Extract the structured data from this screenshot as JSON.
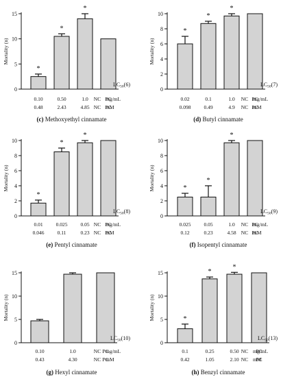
{
  "figure": {
    "bar_fill": "#d3d3d3",
    "bar_stroke": "#111111",
    "line_color": "#111111"
  },
  "chart_data": [
    {
      "type": "bar",
      "panel": "c",
      "caption_letter": "(c)",
      "caption_name": "Methoxyethyl cinnamate",
      "ylabel": "Mortality (n)",
      "ylim": [
        0,
        15
      ],
      "yticks": [
        "0",
        "5",
        "10",
        "15"
      ],
      "lc_label": "LC50(6)",
      "row1": [
        "0.10",
        "0.50",
        "1.0",
        "PC",
        "NC"
      ],
      "row1_unit": "mg/mL",
      "row2": [
        "0.48",
        "2.43",
        "4.85",
        "PC",
        "NC"
      ],
      "row2_unit": "mM",
      "values": [
        2.5,
        10.5,
        14.0,
        10.0,
        0
      ],
      "errors": [
        0.5,
        0.5,
        1.0,
        0,
        0
      ],
      "significant": [
        true,
        true,
        true,
        false,
        false
      ]
    },
    {
      "type": "bar",
      "panel": "d",
      "caption_letter": "(d)",
      "caption_name": "Butyl cinnamate",
      "ylabel": "Mortality (n)",
      "ylim": [
        0,
        10
      ],
      "yticks": [
        "0",
        "2",
        "4",
        "6",
        "8",
        "10"
      ],
      "lc_label": "LC50(7)",
      "row1": [
        "0.02",
        "0.1",
        "1.0",
        "PC",
        "NC"
      ],
      "row1_unit": "mg/mL",
      "row2": [
        "0.098",
        "0.49",
        "4.9",
        "PC",
        "NC"
      ],
      "row2_unit": "mM",
      "values": [
        6.0,
        8.7,
        9.7,
        10.0,
        0
      ],
      "errors": [
        1.0,
        0.3,
        0.3,
        0,
        0
      ],
      "significant": [
        true,
        true,
        true,
        false,
        false
      ]
    },
    {
      "type": "bar",
      "panel": "e",
      "caption_letter": "(e)",
      "caption_name": "Pentyl cinnamate",
      "ylabel": "Mortality (n)",
      "ylim": [
        0,
        10
      ],
      "yticks": [
        "0",
        "2",
        "4",
        "6",
        "8",
        "10"
      ],
      "lc_label": "LC50(8)",
      "row1": [
        "0.01",
        "0.025",
        "0.05",
        "PC",
        "NC"
      ],
      "row1_unit": "mg/mL",
      "row2": [
        "0.046",
        "0.11",
        "0.23",
        "PC",
        "NC"
      ],
      "row2_unit": "mM",
      "values": [
        1.7,
        8.5,
        9.7,
        10.0,
        0
      ],
      "errors": [
        0.4,
        0.5,
        0.3,
        0,
        0
      ],
      "significant": [
        true,
        true,
        true,
        false,
        false
      ]
    },
    {
      "type": "bar",
      "panel": "f",
      "caption_letter": "(f)",
      "caption_name": "Isopentyl cinnamate",
      "ylabel": "Mortality (n)",
      "ylim": [
        0,
        10
      ],
      "yticks": [
        "0",
        "2",
        "4",
        "6",
        "8",
        "10"
      ],
      "lc_label": "LC50(9)",
      "row1": [
        "0.025",
        "0.05",
        "1.0",
        "PC",
        "NC"
      ],
      "row1_unit": "mg/mL",
      "row2": [
        "0.12",
        "0.23",
        "4.58",
        "PC",
        "NC"
      ],
      "row2_unit": "mM",
      "values": [
        2.5,
        2.5,
        9.7,
        10.0,
        0
      ],
      "errors": [
        0.5,
        1.5,
        0.3,
        0,
        0
      ],
      "significant": [
        true,
        true,
        true,
        false,
        false
      ]
    },
    {
      "type": "bar",
      "panel": "g",
      "caption_letter": "(g)",
      "caption_name": "Hexyl cinnamate",
      "ylabel": "Mortality (n)",
      "ylim": [
        0,
        15
      ],
      "yticks": [
        "0",
        "5",
        "10",
        "15"
      ],
      "lc_label": "LC50(10)",
      "row1": [
        "0.10",
        "1.0",
        "PC",
        "NC"
      ],
      "row1_unit": "mg/mL",
      "row2": [
        "0.43",
        "4.30",
        "PC",
        "NC"
      ],
      "row2_unit": "mM",
      "values": [
        4.7,
        14.7,
        15.0,
        0
      ],
      "errors": [
        0.3,
        0.3,
        0,
        0
      ],
      "significant": [
        false,
        false,
        false,
        false
      ]
    },
    {
      "type": "bar",
      "panel": "h",
      "caption_letter": "(h)",
      "caption_name": "Benzyl cinnamate",
      "ylabel": "Mortality (n)",
      "ylim": [
        0,
        15
      ],
      "yticks": [
        "0",
        "5",
        "10",
        "15"
      ],
      "lc_label": "LC50(13)",
      "row1": [
        "0.1",
        "0.25",
        "0.50",
        "PC",
        "NC"
      ],
      "row1_unit": "mg/mL",
      "row2": [
        "0.42",
        "1.05",
        "2.10",
        "PC",
        "NC"
      ],
      "row2_unit": "mM",
      "values": [
        3.0,
        13.7,
        14.7,
        15.0,
        0
      ],
      "errors": [
        1.0,
        0.4,
        0.4,
        0,
        0
      ],
      "significant": [
        true,
        true,
        true,
        false,
        false
      ]
    }
  ]
}
